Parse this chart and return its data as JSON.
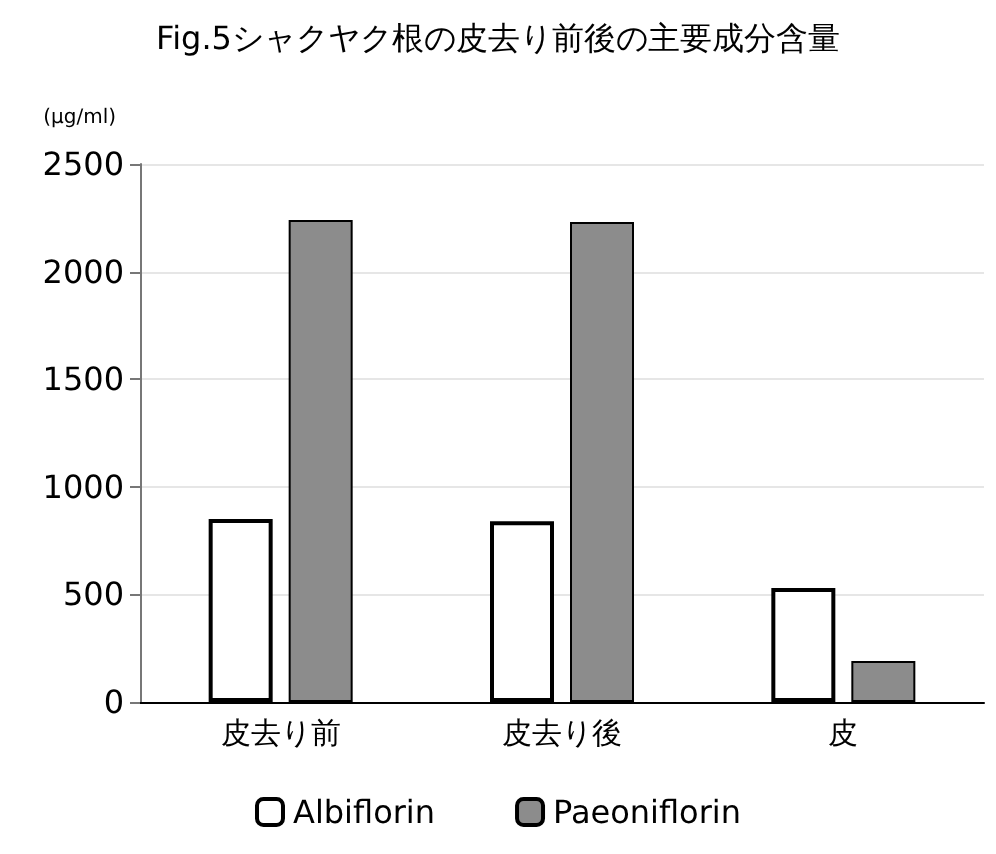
{
  "chart_data": {
    "type": "bar",
    "title": "Fig.5シャクヤク根の皮去り前後の主要成分含量",
    "ylabel": "(μg/ml)",
    "categories": [
      "皮去り前",
      "皮去り後",
      "皮"
    ],
    "series": [
      {
        "name": "Albiflorin",
        "color": "#ffffff",
        "values": [
          850,
          840,
          530
        ]
      },
      {
        "name": "Paeoniflorin",
        "color": "#8c8c8c",
        "values": [
          2240,
          2230,
          190
        ]
      }
    ],
    "ylim": [
      0,
      2500
    ],
    "yticks": [
      0,
      500,
      1000,
      1500,
      2000,
      2500
    ],
    "grid": "y",
    "legend": "bottom"
  }
}
